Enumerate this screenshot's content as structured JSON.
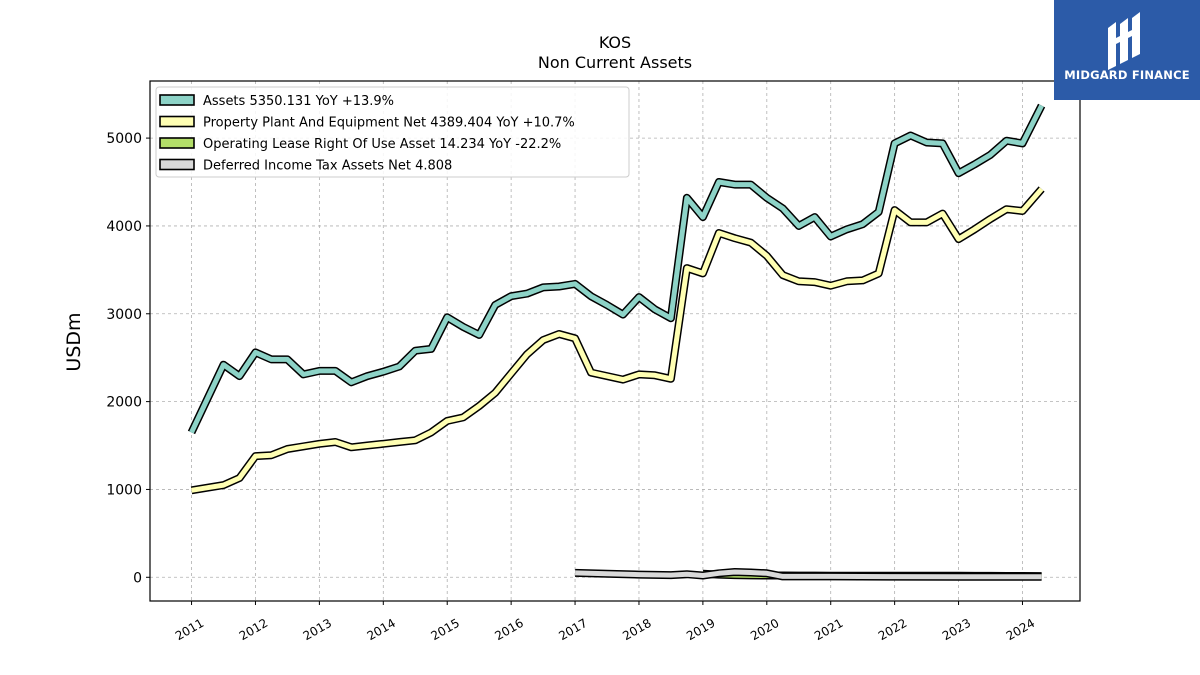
{
  "chart_data": {
    "type": "line",
    "title": "KOS",
    "subtitle": "Non Current  Assets",
    "ylabel": "USDm",
    "xlabel": "",
    "ylim": [
      -270,
      5650
    ],
    "xlim": [
      2010.35,
      2024.9
    ],
    "yticks": [
      0,
      1000,
      2000,
      3000,
      4000,
      5000
    ],
    "xticks": [
      2011,
      2012,
      2013,
      2014,
      2015,
      2016,
      2017,
      2018,
      2019,
      2020,
      2021,
      2022,
      2023,
      2024
    ],
    "grid": true,
    "legend_position": "top-left",
    "series": [
      {
        "name": "Assets",
        "legend_label": "Assets  5350.131 YoY +13.9%",
        "color": "#8dd3c7",
        "points": [
          [
            2011.0,
            1650
          ],
          [
            2011.5,
            2420
          ],
          [
            2011.75,
            2290
          ],
          [
            2012.0,
            2560
          ],
          [
            2012.25,
            2480
          ],
          [
            2012.5,
            2480
          ],
          [
            2012.75,
            2310
          ],
          [
            2013.0,
            2350
          ],
          [
            2013.25,
            2350
          ],
          [
            2013.5,
            2220
          ],
          [
            2013.75,
            2290
          ],
          [
            2014.0,
            2340
          ],
          [
            2014.25,
            2400
          ],
          [
            2014.5,
            2580
          ],
          [
            2014.75,
            2600
          ],
          [
            2015.0,
            2960
          ],
          [
            2015.25,
            2850
          ],
          [
            2015.5,
            2760
          ],
          [
            2015.75,
            3100
          ],
          [
            2016.0,
            3200
          ],
          [
            2016.25,
            3230
          ],
          [
            2016.5,
            3300
          ],
          [
            2016.75,
            3310
          ],
          [
            2017.0,
            3340
          ],
          [
            2017.25,
            3200
          ],
          [
            2017.5,
            3100
          ],
          [
            2017.75,
            2990
          ],
          [
            2018.0,
            3190
          ],
          [
            2018.25,
            3050
          ],
          [
            2018.5,
            2950
          ],
          [
            2018.75,
            4320
          ],
          [
            2019.0,
            4100
          ],
          [
            2019.25,
            4500
          ],
          [
            2019.5,
            4470
          ],
          [
            2019.75,
            4470
          ],
          [
            2020.0,
            4320
          ],
          [
            2020.25,
            4200
          ],
          [
            2020.5,
            4000
          ],
          [
            2020.75,
            4100
          ],
          [
            2021.0,
            3880
          ],
          [
            2021.25,
            3960
          ],
          [
            2021.5,
            4020
          ],
          [
            2021.75,
            4160
          ],
          [
            2022.0,
            4940
          ],
          [
            2022.25,
            5030
          ],
          [
            2022.5,
            4950
          ],
          [
            2022.75,
            4940
          ],
          [
            2023.0,
            4600
          ],
          [
            2023.25,
            4700
          ],
          [
            2023.5,
            4810
          ],
          [
            2023.75,
            4970
          ],
          [
            2024.0,
            4940
          ],
          [
            2024.3,
            5370
          ]
        ]
      },
      {
        "name": "Property Plant And Equipment Net",
        "legend_label": "Property Plant And Equipment Net  4389.404 YoY +10.7%",
        "color": "#ffffb3",
        "points": [
          [
            2011.0,
            990
          ],
          [
            2011.25,
            1020
          ],
          [
            2011.5,
            1050
          ],
          [
            2011.75,
            1130
          ],
          [
            2012.0,
            1380
          ],
          [
            2012.25,
            1390
          ],
          [
            2012.5,
            1460
          ],
          [
            2012.75,
            1490
          ],
          [
            2013.0,
            1520
          ],
          [
            2013.25,
            1540
          ],
          [
            2013.5,
            1480
          ],
          [
            2013.75,
            1500
          ],
          [
            2014.0,
            1520
          ],
          [
            2014.25,
            1540
          ],
          [
            2014.5,
            1560
          ],
          [
            2014.75,
            1650
          ],
          [
            2015.0,
            1780
          ],
          [
            2015.25,
            1820
          ],
          [
            2015.5,
            1950
          ],
          [
            2015.75,
            2100
          ],
          [
            2016.0,
            2320
          ],
          [
            2016.25,
            2540
          ],
          [
            2016.5,
            2700
          ],
          [
            2016.75,
            2770
          ],
          [
            2017.0,
            2720
          ],
          [
            2017.25,
            2330
          ],
          [
            2017.5,
            2290
          ],
          [
            2017.75,
            2250
          ],
          [
            2018.0,
            2310
          ],
          [
            2018.25,
            2300
          ],
          [
            2018.5,
            2260
          ],
          [
            2018.75,
            3520
          ],
          [
            2019.0,
            3460
          ],
          [
            2019.25,
            3920
          ],
          [
            2019.5,
            3860
          ],
          [
            2019.75,
            3810
          ],
          [
            2020.0,
            3660
          ],
          [
            2020.25,
            3440
          ],
          [
            2020.5,
            3370
          ],
          [
            2020.75,
            3360
          ],
          [
            2021.0,
            3320
          ],
          [
            2021.25,
            3370
          ],
          [
            2021.5,
            3380
          ],
          [
            2021.75,
            3460
          ],
          [
            2022.0,
            4180
          ],
          [
            2022.25,
            4040
          ],
          [
            2022.5,
            4040
          ],
          [
            2022.75,
            4140
          ],
          [
            2023.0,
            3850
          ],
          [
            2023.25,
            3960
          ],
          [
            2023.5,
            4080
          ],
          [
            2023.75,
            4190
          ],
          [
            2024.0,
            4170
          ],
          [
            2024.3,
            4420
          ]
        ]
      },
      {
        "name": "Operating Lease Right Of Use Asset",
        "legend_label": "Operating Lease Right Of Use Asset  14.234 YoY -22.2%",
        "color": "#b3de69",
        "points": [
          [
            2019.0,
            40
          ],
          [
            2019.25,
            30
          ],
          [
            2019.5,
            25
          ],
          [
            2019.75,
            22
          ],
          [
            2020.0,
            20
          ],
          [
            2020.25,
            20
          ],
          [
            2020.5,
            19
          ],
          [
            2020.75,
            19
          ],
          [
            2021.0,
            18
          ],
          [
            2021.25,
            18
          ],
          [
            2021.5,
            18
          ],
          [
            2021.75,
            18
          ],
          [
            2022.0,
            18
          ],
          [
            2022.25,
            18
          ],
          [
            2022.5,
            17
          ],
          [
            2022.75,
            17
          ],
          [
            2023.0,
            17
          ],
          [
            2023.25,
            16
          ],
          [
            2023.5,
            16
          ],
          [
            2023.75,
            15
          ],
          [
            2024.0,
            15
          ],
          [
            2024.3,
            14
          ]
        ]
      },
      {
        "name": "Deferred Income Tax Assets Net",
        "legend_label": "Deferred Income Tax Assets Net  4.808",
        "color": "#d9d9d9",
        "points": [
          [
            2017.0,
            50
          ],
          [
            2017.5,
            40
          ],
          [
            2018.0,
            30
          ],
          [
            2018.5,
            25
          ],
          [
            2018.75,
            35
          ],
          [
            2019.0,
            20
          ],
          [
            2019.25,
            45
          ],
          [
            2019.5,
            60
          ],
          [
            2019.75,
            55
          ],
          [
            2020.0,
            45
          ],
          [
            2020.25,
            10
          ],
          [
            2020.5,
            10
          ],
          [
            2021.0,
            10
          ],
          [
            2022.0,
            8
          ],
          [
            2023.0,
            6
          ],
          [
            2024.0,
            5
          ],
          [
            2024.3,
            5
          ]
        ]
      }
    ]
  },
  "logo": {
    "text": "MIDGARD FINANCE",
    "background": "#2c5ba8"
  }
}
